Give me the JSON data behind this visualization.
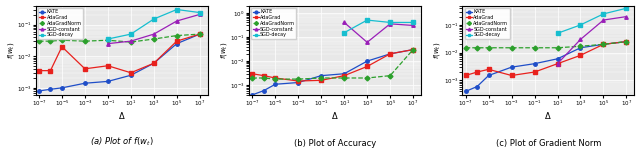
{
  "subplot_captions": [
    "(a) Plot of $f(w_t)$",
    "(b) Plot of Accuracy",
    "(c) Plot of Gradient Norm"
  ],
  "xlabel": "$\\Delta$",
  "ylabel": "$f(w_t)$",
  "xlim": [
    5e-08,
    50000000.0
  ],
  "plot1": {
    "ylim": [
      0.0006,
      0.4
    ],
    "KATE": {
      "x": [
        1e-07,
        1e-06,
        1e-05,
        0.001,
        0.1,
        10.0,
        1000.0,
        100000.0,
        10000000.0
      ],
      "y": [
        0.0008,
        0.0009,
        0.001,
        0.0014,
        0.0016,
        0.0025,
        0.006,
        0.025,
        0.05
      ]
    },
    "AdaGrad": {
      "x": [
        1e-07,
        1e-06,
        1e-05,
        0.001,
        0.1,
        10.0,
        1000.0,
        100000.0,
        10000000.0
      ],
      "y": [
        0.0035,
        0.0035,
        0.02,
        0.004,
        0.005,
        0.003,
        0.006,
        0.03,
        0.05
      ]
    },
    "AdaGradNorm": {
      "x": [
        1e-07,
        1e-06,
        1e-05,
        0.001,
        0.1,
        10.0,
        1000.0,
        100000.0,
        10000000.0
      ],
      "y": [
        0.03,
        0.03,
        0.032,
        0.03,
        0.032,
        0.028,
        0.035,
        0.045,
        0.05
      ]
    },
    "SGD-constant": {
      "x": [
        0.1,
        10.0,
        1000.0,
        100000.0,
        10000000.0
      ],
      "y": [
        0.025,
        0.03,
        0.05,
        0.13,
        0.21
      ]
    },
    "SGD-decay": {
      "x": [
        0.1,
        10.0,
        1000.0,
        100000.0,
        10000000.0
      ],
      "y": [
        0.035,
        0.05,
        0.15,
        0.3,
        0.24
      ]
    }
  },
  "plot2": {
    "ylim": [
      0.0004,
      2.0
    ],
    "KATE": {
      "x": [
        1e-07,
        1e-06,
        1e-05,
        0.001,
        0.1,
        10.0,
        1000.0,
        100000.0,
        10000000.0
      ],
      "y": [
        0.0004,
        0.0006,
        0.0011,
        0.0013,
        0.0025,
        0.003,
        0.01,
        0.02,
        0.03
      ]
    },
    "AdaGrad": {
      "x": [
        1e-07,
        1e-06,
        1e-05,
        0.001,
        0.1,
        10.0,
        1000.0,
        100000.0,
        10000000.0
      ],
      "y": [
        0.003,
        0.0025,
        0.002,
        0.0015,
        0.0016,
        0.0025,
        0.006,
        0.02,
        0.03
      ]
    },
    "AdaGradNorm": {
      "x": [
        1e-07,
        1e-06,
        1e-05,
        0.001,
        0.1,
        10.0,
        1000.0,
        100000.0,
        10000000.0
      ],
      "y": [
        0.002,
        0.002,
        0.0018,
        0.0018,
        0.002,
        0.002,
        0.002,
        0.0025,
        0.03
      ]
    },
    "SGD-constant": {
      "x": [
        10.0,
        1000.0,
        100000.0,
        10000000.0
      ],
      "y": [
        0.4,
        0.06,
        0.35,
        0.3
      ]
    },
    "SGD-decay": {
      "x": [
        10.0,
        1000.0,
        100000.0,
        10000000.0
      ],
      "y": [
        0.15,
        0.5,
        0.4,
        0.4
      ]
    }
  },
  "plot3": {
    "ylim": [
      0.0003,
      0.5
    ],
    "KATE": {
      "x": [
        1e-07,
        1e-06,
        1e-05,
        0.001,
        0.1,
        10.0,
        1000.0,
        100000.0,
        10000000.0
      ],
      "y": [
        0.0004,
        0.0006,
        0.0015,
        0.003,
        0.004,
        0.006,
        0.015,
        0.02,
        0.025
      ]
    },
    "AdaGrad": {
      "x": [
        1e-07,
        1e-06,
        1e-05,
        0.001,
        0.1,
        10.0,
        1000.0,
        100000.0,
        10000000.0
      ],
      "y": [
        0.0015,
        0.002,
        0.0025,
        0.0015,
        0.002,
        0.004,
        0.008,
        0.02,
        0.025
      ]
    },
    "AdaGradNorm": {
      "x": [
        1e-07,
        1e-06,
        1e-05,
        0.001,
        0.1,
        10.0,
        1000.0,
        100000.0,
        10000000.0
      ],
      "y": [
        0.015,
        0.015,
        0.015,
        0.015,
        0.015,
        0.015,
        0.017,
        0.02,
        0.025
      ]
    },
    "SGD-constant": {
      "x": [
        10.0,
        1000.0,
        100000.0,
        10000000.0
      ],
      "y": [
        0.004,
        0.03,
        0.15,
        0.2
      ]
    },
    "SGD-decay": {
      "x": [
        10.0,
        1000.0,
        100000.0,
        10000000.0
      ],
      "y": [
        0.05,
        0.1,
        0.25,
        0.4
      ]
    }
  },
  "colors": {
    "KATE": "#1f4ec8",
    "AdaGrad": "#e8211d",
    "AdaGradNorm": "#2ca02c",
    "SGD-constant": "#9a1fb8",
    "SGD-decay": "#17becf"
  },
  "markers": {
    "KATE": "o",
    "AdaGrad": "s",
    "AdaGradNorm": "D",
    "SGD-constant": "^",
    "SGD-decay": "s"
  },
  "linestyles": {
    "KATE": "-",
    "AdaGrad": "-",
    "AdaGradNorm": "--",
    "SGD-constant": "-",
    "SGD-decay": "-"
  }
}
